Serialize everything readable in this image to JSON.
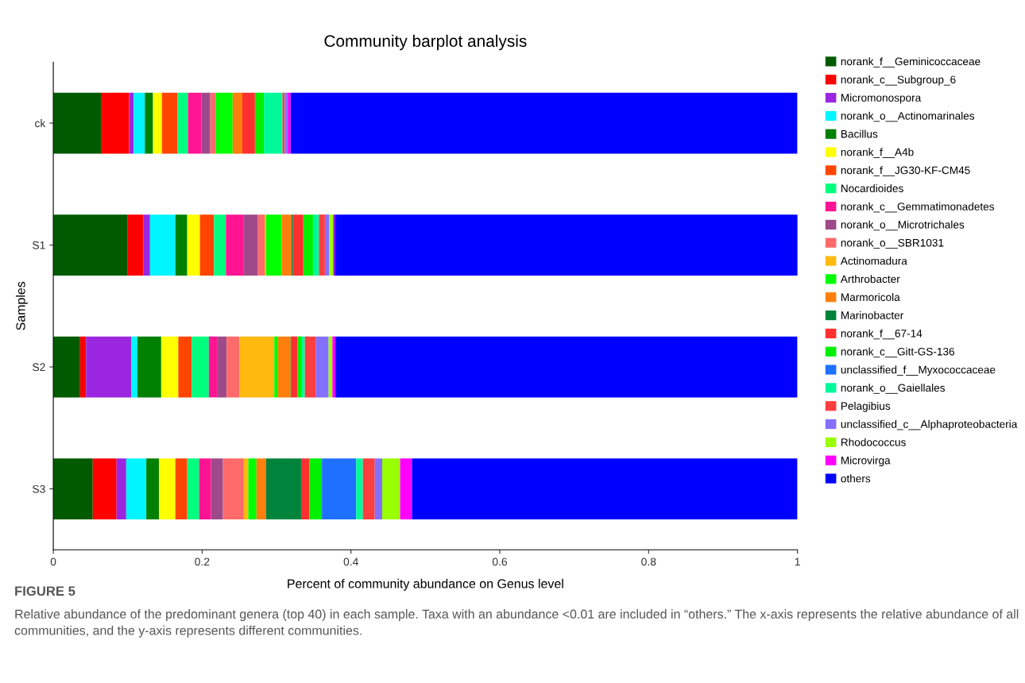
{
  "chart_data": {
    "type": "bar",
    "orientation": "horizontal",
    "stacked": true,
    "title": "Community barplot analysis",
    "xlabel": "Percent of community abundance on Genus level",
    "ylabel": "Samples",
    "categories": [
      "ck",
      "S1",
      "S2",
      "S3"
    ],
    "xlim": [
      0,
      1
    ],
    "xticks": [
      0,
      0.2,
      0.4,
      0.6,
      0.8,
      1
    ],
    "grid": false,
    "legend": "right",
    "series": [
      {
        "name": "norank_f__Geminicoccaceae",
        "color": "#005a00",
        "values": [
          0.064,
          0.1,
          0.036,
          0.053
        ]
      },
      {
        "name": "norank_c__Subgroup_6",
        "color": "#ff0000",
        "values": [
          0.038,
          0.021,
          0.008,
          0.032
        ]
      },
      {
        "name": "Micromonospora",
        "color": "#9b26e0",
        "values": [
          0.006,
          0.009,
          0.061,
          0.013
        ]
      },
      {
        "name": "norank_o__Actinomarinales",
        "color": "#00f5ff",
        "values": [
          0.015,
          0.034,
          0.008,
          0.027
        ]
      },
      {
        "name": "Bacillus",
        "color": "#008000",
        "values": [
          0.011,
          0.016,
          0.032,
          0.017
        ]
      },
      {
        "name": "norank_f__A4b",
        "color": "#ffff00",
        "values": [
          0.012,
          0.017,
          0.023,
          0.022
        ]
      },
      {
        "name": "norank_f__JG30-KF-CM45",
        "color": "#ff4500",
        "values": [
          0.021,
          0.019,
          0.018,
          0.016
        ]
      },
      {
        "name": "Nocardioides",
        "color": "#00ff7f",
        "values": [
          0.014,
          0.016,
          0.023,
          0.016
        ]
      },
      {
        "name": "norank_c__Gemmatimonadetes",
        "color": "#ff1493",
        "values": [
          0.018,
          0.024,
          0.011,
          0.016
        ]
      },
      {
        "name": "norank_o__Microtrichales",
        "color": "#9e4a8a",
        "values": [
          0.012,
          0.019,
          0.013,
          0.016
        ]
      },
      {
        "name": "norank_o__SBR1031",
        "color": "#ff6a6a",
        "values": [
          0.007,
          0.009,
          0.017,
          0.028
        ]
      },
      {
        "name": "Actinomadura",
        "color": "#ffb90f",
        "values": [
          0,
          0.002,
          0.047,
          0.006
        ]
      },
      {
        "name": "Arthrobacter",
        "color": "#00ff00",
        "values": [
          0.023,
          0.021,
          0.005,
          0.011
        ]
      },
      {
        "name": "Marmoricola",
        "color": "#ff7f0e",
        "values": [
          0.013,
          0.013,
          0.017,
          0.013
        ]
      },
      {
        "name": "Marinobacter",
        "color": "#00843c",
        "values": [
          0,
          0.002,
          0.001,
          0.047
        ]
      },
      {
        "name": "norank_f__67-14",
        "color": "#ff3030",
        "values": [
          0.017,
          0.014,
          0.008,
          0.011
        ]
      },
      {
        "name": "norank_c__Gitt-GS-136",
        "color": "#00f000",
        "values": [
          0.012,
          0.013,
          0.006,
          0.017
        ]
      },
      {
        "name": "unclassified_f__Myxococcaceae",
        "color": "#1e70ff",
        "values": [
          0,
          0,
          0,
          0.046
        ]
      },
      {
        "name": "norank_o__Gaiellales",
        "color": "#00fa9a",
        "values": [
          0.025,
          0.008,
          0.004,
          0.009
        ]
      },
      {
        "name": "Pelagibius",
        "color": "#ff3e3e",
        "values": [
          0.003,
          0.008,
          0.015,
          0.016
        ]
      },
      {
        "name": "unclassified_c__Alphaproteobacteria",
        "color": "#8470ff",
        "values": [
          0.004,
          0.006,
          0.017,
          0.01
        ]
      },
      {
        "name": "Rhodococcus",
        "color": "#9aff00",
        "values": [
          0,
          0.005,
          0.005,
          0.024
        ]
      },
      {
        "name": "Microvirga",
        "color": "#ff00ff",
        "values": [
          0.004,
          0.002,
          0.004,
          0.016
        ]
      },
      {
        "name": "others",
        "color": "#0000ff",
        "values": [
          0.681,
          0.623,
          0.621,
          0.518
        ]
      }
    ],
    "annotations": [
      "FIGURE 5",
      "Relative abundance of the predominant genera (top 40) in each sample. Taxa with an abundance <0.01 are included in “others.” The x-axis represents the relative abundance of all communities, and the y-axis represents different communities."
    ]
  }
}
